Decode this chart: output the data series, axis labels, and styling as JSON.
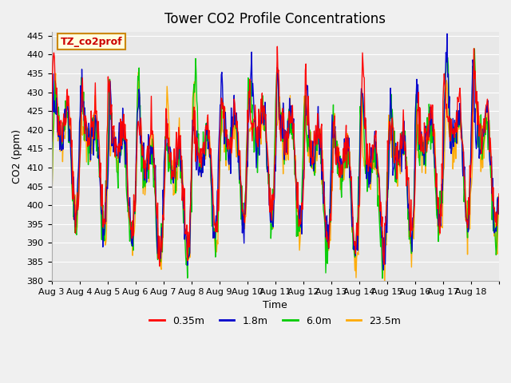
{
  "title": "Tower CO2 Profile Concentrations",
  "xlabel": "Time",
  "ylabel": "CO2 (ppm)",
  "ylim": [
    380,
    446
  ],
  "yticks": [
    380,
    385,
    390,
    395,
    400,
    405,
    410,
    415,
    420,
    425,
    430,
    435,
    440,
    445
  ],
  "bg_color": "#e8e8e8",
  "legend_label": "TZ_co2prof",
  "series_labels": [
    "0.35m",
    "1.8m",
    "6.0m",
    "23.5m"
  ],
  "series_colors": [
    "#ff0000",
    "#0000cc",
    "#00cc00",
    "#ffaa00"
  ],
  "line_width": 1.0,
  "x_tick_positions": [
    0,
    1,
    2,
    3,
    4,
    5,
    6,
    7,
    8,
    9,
    10,
    11,
    12,
    13,
    14,
    15,
    16
  ],
  "x_tick_labels": [
    "Aug 3",
    "Aug 4",
    "Aug 5",
    "Aug 6",
    "Aug 7",
    "Aug 8",
    "Aug 9",
    "Aug 10",
    "Aug 11",
    "Aug 12",
    "Aug 13",
    "Aug 14",
    "Aug 15",
    "Aug 16",
    "Aug 17",
    "Aug 18",
    ""
  ],
  "n_days": 16,
  "pts_per_day": 48,
  "base_co2": 408,
  "amplitude": 18,
  "noise_scale": 3.0
}
